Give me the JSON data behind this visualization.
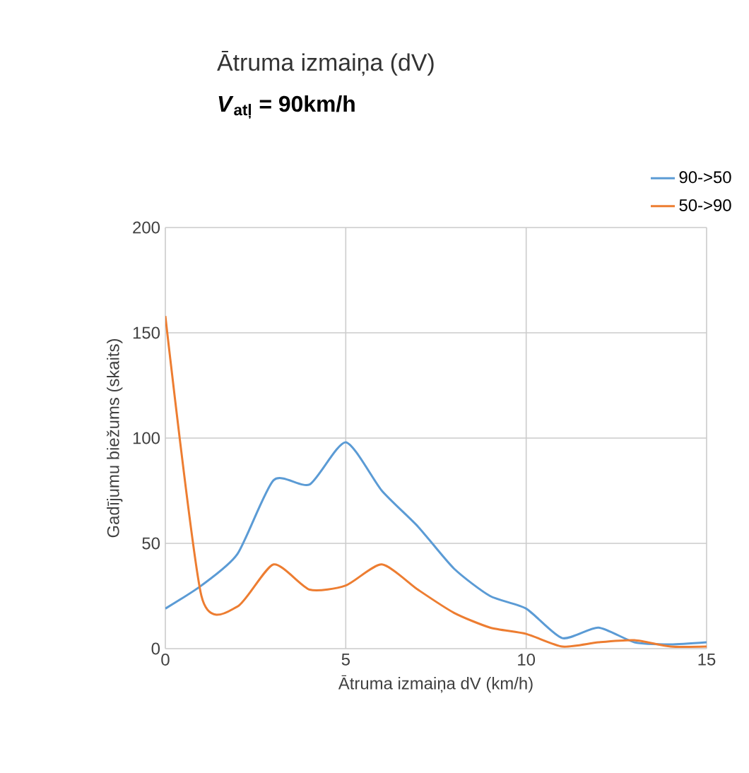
{
  "chart_data": {
    "type": "line",
    "title": "Ātruma izmaiņa (dV)",
    "subtitle": "*V*$_{atļ}$ = 90km/h",
    "xlabel": "Ātruma izmaiņa dV (km/h)",
    "ylabel": "Gadījumu biežums (skaits)",
    "x": [
      0,
      1,
      2,
      3,
      4,
      5,
      6,
      7,
      8,
      9,
      10,
      11,
      12,
      13,
      14,
      15
    ],
    "series": [
      {
        "name": "90->50",
        "color": "#5b9bd5",
        "values": [
          19,
          30,
          45,
          80,
          78,
          98,
          75,
          58,
          38,
          25,
          19,
          5,
          10,
          3,
          2,
          3
        ]
      },
      {
        "name": "50->90",
        "color": "#ed7d31",
        "values": [
          158,
          25,
          20,
          40,
          28,
          30,
          40,
          28,
          17,
          10,
          7,
          1,
          3,
          4,
          1,
          1
        ]
      }
    ],
    "xlim": [
      0,
      15
    ],
    "ylim": [
      0,
      200
    ],
    "xticks": [
      0,
      5,
      10,
      15
    ],
    "yticks": [
      0,
      50,
      100,
      150,
      200
    ],
    "grid": true,
    "legend": "top right",
    "marker": "none",
    "line_style": "solid"
  }
}
